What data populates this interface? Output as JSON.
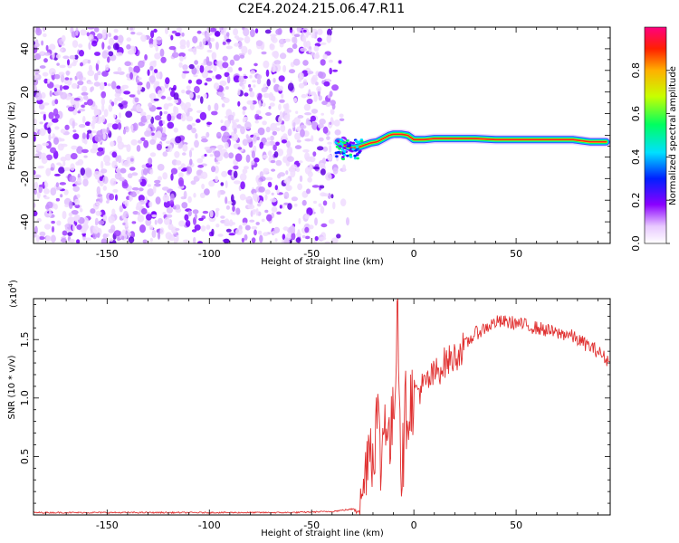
{
  "title": "C2E4.2024.215.06.47.R11",
  "chart_data": [
    {
      "type": "heatmap",
      "xlabel": "Height of straight line (km)",
      "ylabel": "Frequency (Hz)",
      "xlim": [
        -186,
        96
      ],
      "ylim": [
        -50,
        50
      ],
      "x_ticks": [
        -150,
        -100,
        -50,
        0,
        50
      ],
      "y_ticks": [
        -40,
        -20,
        0,
        20,
        40
      ],
      "noise_region_x": [
        -186,
        -35
      ],
      "signal_ridge": {
        "x": [
          -37,
          -33,
          -30,
          -27,
          -24,
          -21,
          -18,
          -15,
          -12,
          -10,
          -6,
          -3,
          0,
          5,
          10,
          20,
          30,
          40,
          50,
          60,
          70,
          78,
          82,
          86,
          90,
          94
        ],
        "y": [
          -3,
          -5,
          -6,
          -5.5,
          -4.5,
          -3.5,
          -3,
          -1.5,
          0,
          0.5,
          0.5,
          0,
          -2,
          -2,
          -1.5,
          -1.5,
          -1.5,
          -2,
          -2,
          -2,
          -2,
          -2,
          -2.5,
          -3,
          -3,
          -3
        ]
      },
      "colorbar": {
        "label": "Normalized spectral amplitude",
        "range": [
          0,
          1
        ],
        "ticks": [
          0.0,
          0.2,
          0.4,
          0.6,
          0.8
        ]
      },
      "colors": {
        "noise": "#7a00ff",
        "ridge_core": "#ff2020",
        "ridge_mid": "#00ff60",
        "ridge_outer": "#2040ff"
      }
    },
    {
      "type": "line",
      "xlabel": "Height of straight line (km)",
      "ylabel": "SNR (10 * v/v)",
      "y_multiplier": "(x10",
      "y_multiplier_exp": "4",
      "y_multiplier_close": ")",
      "xlim": [
        -186,
        96
      ],
      "ylim": [
        0,
        1.85
      ],
      "x_ticks": [
        -150,
        -100,
        -50,
        0,
        50
      ],
      "y_ticks": [
        0.5,
        1.0,
        1.5
      ],
      "series": [
        {
          "color": "#e03030",
          "x": [
            -186,
            -150,
            -100,
            -60,
            -40,
            -30,
            -26,
            -24,
            -22,
            -20,
            -18,
            -16,
            -14,
            -12,
            -10,
            -8,
            -6,
            -4,
            -2,
            0,
            5,
            10,
            15,
            20,
            25,
            30,
            35,
            40,
            45,
            50,
            55,
            60,
            65,
            70,
            75,
            80,
            85,
            90,
            96
          ],
          "y": [
            0.02,
            0.02,
            0.02,
            0.02,
            0.03,
            0.05,
            0.1,
            0.3,
            0.7,
            0.5,
            0.9,
            0.4,
            0.95,
            0.6,
            0.8,
            1.85,
            0.3,
            0.9,
            0.95,
            1.05,
            1.1,
            1.2,
            1.3,
            1.35,
            1.45,
            1.55,
            1.6,
            1.65,
            1.65,
            1.64,
            1.62,
            1.6,
            1.58,
            1.55,
            1.55,
            1.5,
            1.45,
            1.4,
            1.3
          ]
        }
      ]
    }
  ]
}
